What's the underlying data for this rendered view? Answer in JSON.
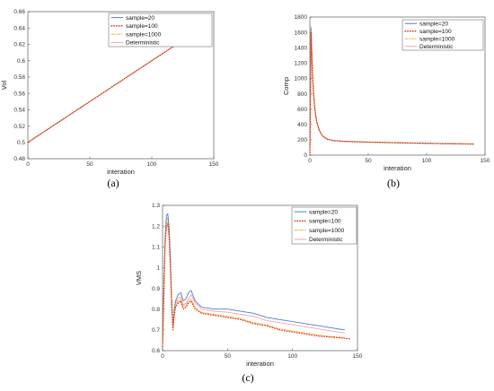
{
  "chart_data": [
    {
      "type": "line",
      "panel_label": "(a)",
      "xlabel": "interation",
      "ylabel": "Vol",
      "xlim": [
        0,
        150
      ],
      "ylim": [
        0.48,
        0.66
      ],
      "xticks": [
        0,
        50,
        100,
        150
      ],
      "yticks": [
        0.48,
        0.5,
        0.52,
        0.54,
        0.56,
        0.58,
        0.6,
        0.62,
        0.64,
        0.66
      ],
      "grid": false,
      "legend": "top-right",
      "series": [
        {
          "name": "sample=20",
          "color": "#4f81bd",
          "style": "solid",
          "x": [
            0,
            140
          ],
          "y": [
            0.5,
            0.64
          ]
        },
        {
          "name": "sample=100",
          "color": "#e3331b",
          "style": "dots",
          "x": [
            0,
            140
          ],
          "y": [
            0.5,
            0.64
          ]
        },
        {
          "name": "sample=1000",
          "color": "#e8b43a",
          "style": "dashdot",
          "x": [
            0,
            140
          ],
          "y": [
            0.5,
            0.64
          ]
        },
        {
          "name": "Deterministic",
          "color": "#f0a0b8",
          "style": "solid",
          "x": [
            0,
            140
          ],
          "y": [
            0.5,
            0.64
          ]
        }
      ]
    },
    {
      "type": "line",
      "panel_label": "(b)",
      "xlabel": "interation",
      "ylabel": "Comp",
      "xlim": [
        0,
        150
      ],
      "ylim": [
        0,
        1800
      ],
      "xticks": [
        0,
        50,
        100,
        150
      ],
      "yticks": [
        0,
        200,
        400,
        600,
        800,
        1000,
        1200,
        1400,
        1600,
        1800
      ],
      "grid": false,
      "legend": "top-right",
      "series": [
        {
          "name": "sample=20",
          "color": "#4f81bd",
          "style": "solid",
          "x": [
            0,
            1,
            2,
            3,
            4,
            5,
            6,
            8,
            10,
            12,
            15,
            20,
            30,
            50,
            80,
            110,
            140
          ],
          "y": [
            0,
            1650,
            1200,
            850,
            650,
            520,
            430,
            330,
            270,
            235,
            210,
            190,
            180,
            170,
            160,
            152,
            145
          ]
        },
        {
          "name": "sample=100",
          "color": "#e3331b",
          "style": "dots",
          "x": [
            0,
            1,
            2,
            3,
            4,
            5,
            6,
            8,
            10,
            12,
            15,
            20,
            30,
            50,
            80,
            110,
            140
          ],
          "y": [
            0,
            1600,
            1150,
            820,
            630,
            505,
            420,
            325,
            268,
            233,
            208,
            189,
            179,
            169,
            159,
            151,
            144
          ]
        },
        {
          "name": "sample=1000",
          "color": "#e8b43a",
          "style": "dashdot",
          "x": [
            0,
            1,
            2,
            3,
            4,
            5,
            6,
            8,
            10,
            12,
            15,
            20,
            30,
            50,
            80,
            110,
            140
          ],
          "y": [
            0,
            1620,
            1170,
            830,
            640,
            510,
            425,
            328,
            269,
            234,
            209,
            189,
            179,
            169,
            159,
            151,
            144
          ]
        },
        {
          "name": "Deterministic",
          "color": "#f0a0b8",
          "style": "solid",
          "x": [
            0,
            1,
            2,
            3,
            4,
            5,
            6,
            8,
            10,
            12,
            15,
            20,
            30,
            50,
            80,
            110,
            140
          ],
          "y": [
            0,
            1680,
            1220,
            860,
            660,
            525,
            435,
            332,
            272,
            236,
            211,
            191,
            181,
            171,
            161,
            153,
            146
          ]
        }
      ]
    },
    {
      "type": "line",
      "panel_label": "(c)",
      "xlabel": "interation",
      "ylabel": "VMS",
      "xlim": [
        0,
        150
      ],
      "ylim": [
        0.6,
        1.3
      ],
      "xticks": [
        0,
        50,
        100,
        150
      ],
      "yticks": [
        0.6,
        0.7,
        0.8,
        0.9,
        1.0,
        1.1,
        1.2,
        1.3
      ],
      "ytick_labels": [
        "0.6",
        "0.7",
        "0.8",
        "0.9",
        "1",
        "1.1",
        "1.2",
        "1.3"
      ],
      "grid": false,
      "legend": "top-right",
      "series": [
        {
          "name": "sample=20",
          "color": "#4f81bd",
          "style": "solid",
          "x": [
            0,
            1,
            2,
            3,
            4,
            5,
            6,
            7,
            8,
            9,
            10,
            12,
            14,
            16,
            18,
            20,
            22,
            25,
            30,
            40,
            50,
            60,
            70,
            80,
            90,
            100,
            110,
            120,
            130,
            140
          ],
          "y": [
            0.62,
            0.9,
            1.15,
            1.25,
            1.26,
            1.2,
            1.05,
            0.85,
            0.72,
            0.8,
            0.84,
            0.87,
            0.88,
            0.84,
            0.85,
            0.88,
            0.89,
            0.84,
            0.81,
            0.8,
            0.8,
            0.79,
            0.78,
            0.76,
            0.75,
            0.74,
            0.73,
            0.72,
            0.71,
            0.7
          ]
        },
        {
          "name": "sample=100",
          "color": "#e3331b",
          "style": "dots",
          "x": [
            0,
            1,
            2,
            3,
            4,
            5,
            6,
            7,
            8,
            9,
            10,
            12,
            14,
            16,
            18,
            20,
            22,
            25,
            30,
            40,
            50,
            60,
            70,
            80,
            90,
            100,
            110,
            120,
            130,
            140,
            145
          ],
          "y": [
            0.62,
            0.88,
            1.12,
            1.2,
            1.21,
            1.15,
            1.0,
            0.82,
            0.7,
            0.77,
            0.81,
            0.83,
            0.84,
            0.8,
            0.81,
            0.83,
            0.84,
            0.8,
            0.78,
            0.77,
            0.76,
            0.75,
            0.73,
            0.72,
            0.7,
            0.69,
            0.68,
            0.67,
            0.665,
            0.66,
            0.655
          ]
        },
        {
          "name": "sample=1000",
          "color": "#e8b43a",
          "style": "dashdot",
          "x": [
            0,
            1,
            2,
            3,
            4,
            5,
            6,
            7,
            8,
            9,
            10,
            12,
            14,
            16,
            18,
            20,
            22,
            25,
            30,
            40,
            50,
            60,
            70,
            80,
            90,
            100,
            110,
            120,
            130,
            140
          ],
          "y": [
            0.62,
            0.89,
            1.13,
            1.21,
            1.22,
            1.16,
            1.01,
            0.83,
            0.71,
            0.78,
            0.82,
            0.84,
            0.85,
            0.81,
            0.82,
            0.84,
            0.85,
            0.81,
            0.785,
            0.775,
            0.765,
            0.755,
            0.735,
            0.725,
            0.705,
            0.695,
            0.685,
            0.675,
            0.668,
            0.662
          ]
        },
        {
          "name": "Deterministic",
          "color": "#f0a0b8",
          "style": "solid",
          "x": [
            0,
            1,
            2,
            3,
            4,
            5,
            6,
            7,
            8,
            9,
            10,
            12,
            14,
            16,
            18,
            20,
            22,
            25,
            30,
            40,
            50,
            60,
            70,
            80,
            90,
            100,
            110,
            120,
            130,
            140
          ],
          "y": [
            0.62,
            0.9,
            1.14,
            1.23,
            1.24,
            1.18,
            1.03,
            0.84,
            0.71,
            0.79,
            0.83,
            0.85,
            0.86,
            0.82,
            0.83,
            0.85,
            0.87,
            0.83,
            0.8,
            0.79,
            0.785,
            0.775,
            0.765,
            0.745,
            0.735,
            0.725,
            0.715,
            0.705,
            0.695,
            0.685
          ]
        }
      ]
    }
  ]
}
